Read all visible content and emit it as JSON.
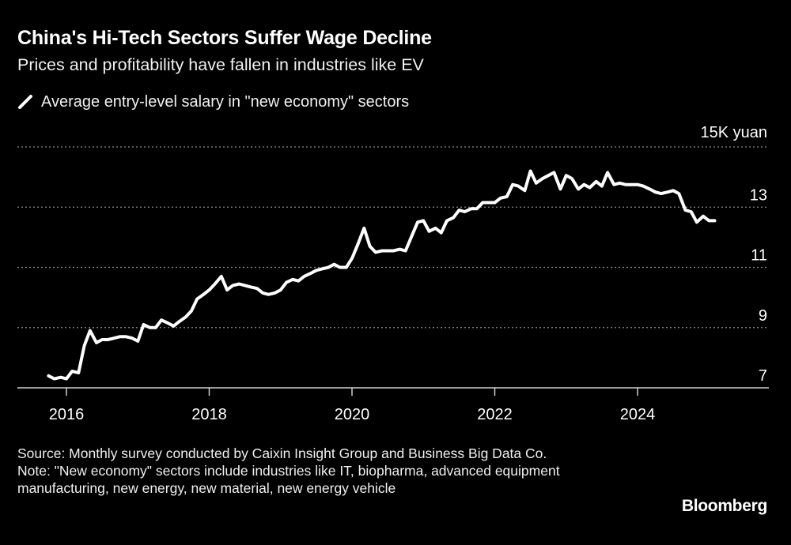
{
  "header": {
    "title": "China's Hi-Tech Sectors Suffer Wage Decline",
    "subtitle": "Prices and profitability have fallen in industries like EV"
  },
  "legend": {
    "label": "Average entry-level salary in \"new economy\" sectors"
  },
  "footer": {
    "source": "Source: Monthly survey conducted by Caixin Insight Group and Business Big Data Co.",
    "note": "Note: \"New economy\" sectors include industries like IT, biopharma, advanced equipment manufacturing, new energy, new material, new energy vehicle",
    "brand": "Bloomberg"
  },
  "colors": {
    "background": "#000000",
    "line": "#ffffff",
    "gridline": "#8a8a8a",
    "axis": "#cfcfcf",
    "text": "#ffffff"
  },
  "chart_data": {
    "type": "line",
    "title": "China's Hi-Tech Sectors Suffer Wage Decline",
    "subtitle": "Prices and profitability have fallen in industries like EV",
    "xlabel": "",
    "ylabel": "15K yuan",
    "unit_label": "15K yuan",
    "xlim": [
      2015.6,
      2025.83
    ],
    "ylim": [
      7,
      15
    ],
    "yticks": [
      7,
      9,
      11,
      13
    ],
    "xticks": [
      2016,
      2018,
      2020,
      2022,
      2024
    ],
    "grid": true,
    "legend": "top-left",
    "series": [
      {
        "name": "Average entry-level salary in \"new economy\" sectors",
        "x": [
          2015.75,
          2015.83,
          2015.92,
          2016.0,
          2016.08,
          2016.17,
          2016.25,
          2016.33,
          2016.42,
          2016.5,
          2016.58,
          2016.67,
          2016.75,
          2016.83,
          2016.92,
          2017.0,
          2017.08,
          2017.17,
          2017.25,
          2017.33,
          2017.42,
          2017.5,
          2017.58,
          2017.67,
          2017.75,
          2017.83,
          2017.92,
          2018.0,
          2018.08,
          2018.17,
          2018.25,
          2018.33,
          2018.42,
          2018.5,
          2018.58,
          2018.67,
          2018.75,
          2018.83,
          2018.92,
          2019.0,
          2019.08,
          2019.17,
          2019.25,
          2019.33,
          2019.42,
          2019.5,
          2019.58,
          2019.67,
          2019.75,
          2019.83,
          2019.92,
          2020.0,
          2020.08,
          2020.17,
          2020.25,
          2020.33,
          2020.42,
          2020.5,
          2020.58,
          2020.67,
          2020.75,
          2020.83,
          2020.92,
          2021.0,
          2021.08,
          2021.17,
          2021.25,
          2021.33,
          2021.42,
          2021.5,
          2021.58,
          2021.67,
          2021.75,
          2021.83,
          2021.92,
          2022.0,
          2022.08,
          2022.17,
          2022.25,
          2022.33,
          2022.42,
          2022.5,
          2022.58,
          2022.67,
          2022.75,
          2022.83,
          2022.92,
          2023.0,
          2023.08,
          2023.17,
          2023.25,
          2023.33,
          2023.42,
          2023.5,
          2023.58,
          2023.67,
          2023.75,
          2023.83,
          2023.92,
          2024.0,
          2024.08,
          2024.17,
          2024.25,
          2024.33,
          2024.42,
          2024.5,
          2024.58,
          2024.67,
          2024.75,
          2024.83,
          2024.92,
          2025.0,
          2025.08
        ],
        "values": [
          7.4,
          7.3,
          7.35,
          7.3,
          7.55,
          7.5,
          8.4,
          8.9,
          8.5,
          8.6,
          8.6,
          8.65,
          8.7,
          8.7,
          8.65,
          8.55,
          9.1,
          9.0,
          9.0,
          9.25,
          9.15,
          9.05,
          9.2,
          9.35,
          9.55,
          9.95,
          10.1,
          10.25,
          10.45,
          10.7,
          10.25,
          10.4,
          10.45,
          10.4,
          10.35,
          10.3,
          10.15,
          10.1,
          10.15,
          10.25,
          10.5,
          10.6,
          10.55,
          10.7,
          10.8,
          10.9,
          10.95,
          11.0,
          11.1,
          11.0,
          11.0,
          11.3,
          11.75,
          12.3,
          11.7,
          11.5,
          11.55,
          11.55,
          11.55,
          11.6,
          11.55,
          12.0,
          12.5,
          12.55,
          12.2,
          12.3,
          12.15,
          12.55,
          12.65,
          12.9,
          12.85,
          12.95,
          12.95,
          13.15,
          13.15,
          13.15,
          13.3,
          13.35,
          13.75,
          13.7,
          13.55,
          14.2,
          13.8,
          13.95,
          14.05,
          14.15,
          13.6,
          14.05,
          13.95,
          13.6,
          13.75,
          13.65,
          13.85,
          13.7,
          14.15,
          13.75,
          13.8,
          13.75,
          13.75,
          13.75,
          13.7,
          13.6,
          13.5,
          13.45,
          13.5,
          13.55,
          13.45,
          12.9,
          12.85,
          12.5,
          12.7,
          12.55,
          12.55
        ]
      }
    ]
  }
}
